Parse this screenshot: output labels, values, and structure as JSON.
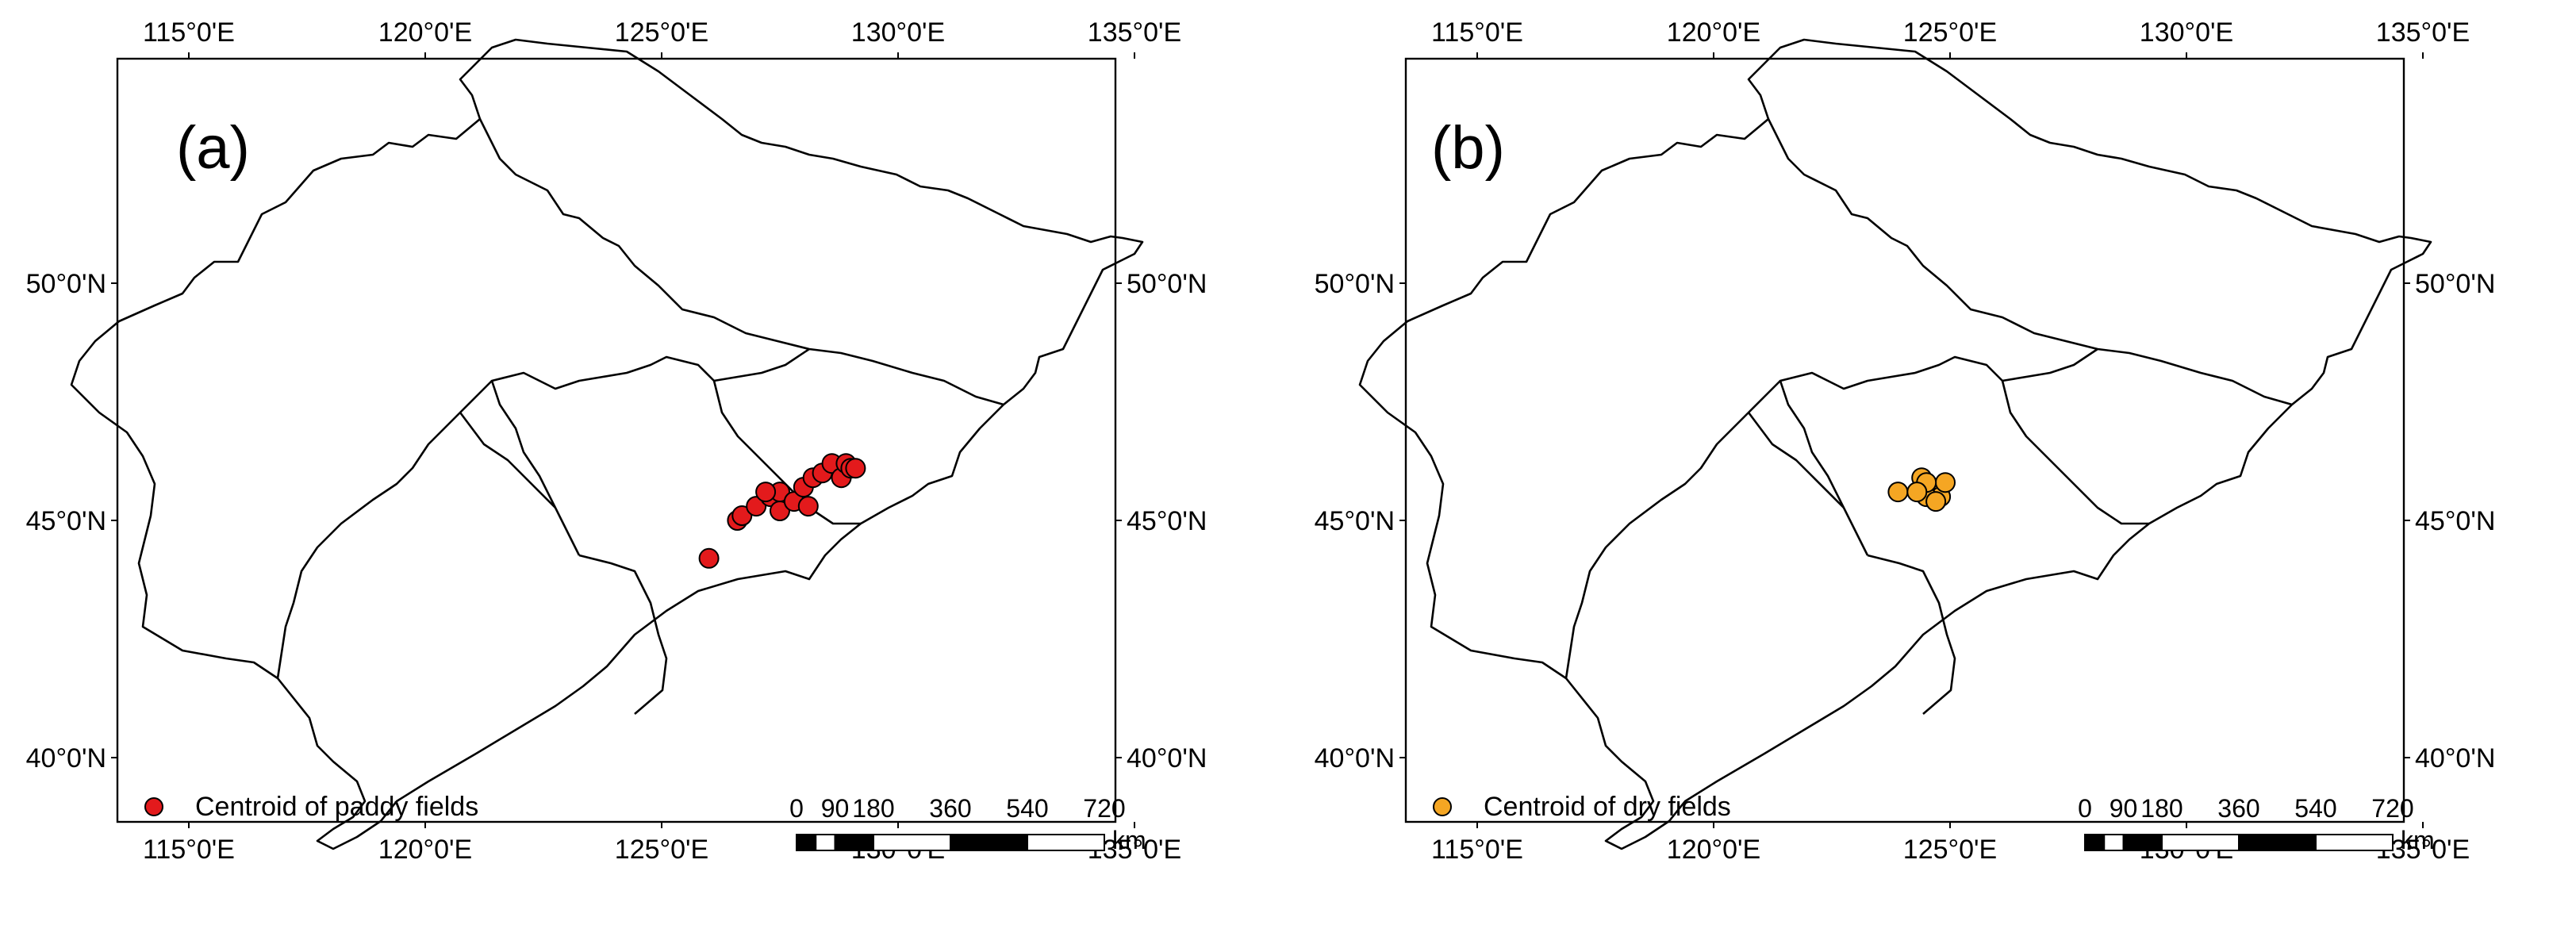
{
  "figure": {
    "panels": [
      {
        "label": "(a)",
        "legend": {
          "text": "Centroid of paddy fields",
          "color": "#e31a1c"
        },
        "points": [
          [
            126.0,
            44.2
          ],
          [
            126.6,
            45.0
          ],
          [
            126.7,
            45.1
          ],
          [
            127.0,
            45.3
          ],
          [
            127.3,
            45.5
          ],
          [
            127.5,
            45.2
          ],
          [
            127.5,
            45.6
          ],
          [
            127.8,
            45.4
          ],
          [
            128.0,
            45.7
          ],
          [
            128.1,
            45.3
          ],
          [
            128.2,
            45.9
          ],
          [
            128.4,
            46.0
          ],
          [
            128.6,
            46.2
          ],
          [
            128.8,
            45.9
          ],
          [
            128.9,
            46.2
          ],
          [
            129.0,
            46.1
          ],
          [
            129.1,
            46.1
          ],
          [
            127.2,
            45.6
          ]
        ]
      },
      {
        "label": "(b)",
        "legend": {
          "text": "Centroid of dry fields",
          "color": "#f5a623"
        },
        "points": [
          [
            123.9,
            45.6
          ],
          [
            124.4,
            45.9
          ],
          [
            124.6,
            45.7
          ],
          [
            124.7,
            45.6
          ],
          [
            124.8,
            45.5
          ],
          [
            124.5,
            45.5
          ],
          [
            124.9,
            45.8
          ],
          [
            124.7,
            45.4
          ],
          [
            124.5,
            45.8
          ],
          [
            124.3,
            45.6
          ]
        ]
      }
    ],
    "axes": {
      "lon_ticks": [
        "115°0'E",
        "120°0'E",
        "125°0'E",
        "130°0'E",
        "135°0'E"
      ],
      "lat_ticks": [
        "50°0'N",
        "45°0'N",
        "40°0'N"
      ]
    },
    "scalebar": {
      "labels": [
        "0",
        "90",
        "180",
        "360",
        "540",
        "720"
      ],
      "unit": "km"
    }
  }
}
